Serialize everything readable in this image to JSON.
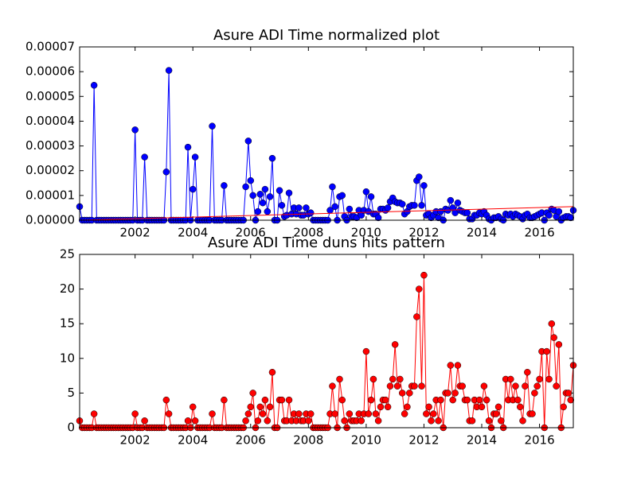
{
  "chart_data": [
    {
      "type": "line",
      "title": "Asure ADI Time normalized plot",
      "x": [
        2000.08,
        2000.17,
        2000.25,
        2000.33,
        2000.42,
        2000.5,
        2000.58,
        2000.67,
        2000.75,
        2000.83,
        2000.92,
        2001,
        2001.08,
        2001.17,
        2001.25,
        2001.33,
        2001.42,
        2001.5,
        2001.58,
        2001.67,
        2001.75,
        2001.83,
        2001.92,
        2002,
        2002.08,
        2002.17,
        2002.25,
        2002.33,
        2002.42,
        2002.5,
        2002.58,
        2002.67,
        2002.75,
        2002.83,
        2002.92,
        2003,
        2003.08,
        2003.17,
        2003.25,
        2003.33,
        2003.42,
        2003.5,
        2003.58,
        2003.67,
        2003.75,
        2003.83,
        2003.92,
        2004,
        2004.08,
        2004.17,
        2004.25,
        2004.33,
        2004.42,
        2004.5,
        2004.58,
        2004.67,
        2004.75,
        2004.83,
        2004.92,
        2005,
        2005.08,
        2005.17,
        2005.25,
        2005.33,
        2005.42,
        2005.5,
        2005.58,
        2005.67,
        2005.75,
        2005.83,
        2005.92,
        2006,
        2006.08,
        2006.17,
        2006.25,
        2006.33,
        2006.42,
        2006.5,
        2006.58,
        2006.67,
        2006.75,
        2006.83,
        2006.92,
        2007,
        2007.08,
        2007.17,
        2007.25,
        2007.33,
        2007.42,
        2007.5,
        2007.58,
        2007.67,
        2007.75,
        2007.83,
        2007.92,
        2008,
        2008.08,
        2008.17,
        2008.25,
        2008.33,
        2008.42,
        2008.5,
        2008.58,
        2008.67,
        2008.75,
        2008.83,
        2008.92,
        2009,
        2009.08,
        2009.17,
        2009.25,
        2009.33,
        2009.42,
        2009.5,
        2009.58,
        2009.67,
        2009.75,
        2009.83,
        2009.92,
        2010,
        2010.08,
        2010.17,
        2010.25,
        2010.33,
        2010.42,
        2010.5,
        2010.58,
        2010.67,
        2010.75,
        2010.83,
        2010.92,
        2011,
        2011.08,
        2011.17,
        2011.25,
        2011.33,
        2011.42,
        2011.5,
        2011.58,
        2011.67,
        2011.75,
        2011.83,
        2011.92,
        2012,
        2012.08,
        2012.17,
        2012.25,
        2012.33,
        2012.42,
        2012.5,
        2012.58,
        2012.67,
        2012.75,
        2012.83,
        2012.92,
        2013,
        2013.08,
        2013.17,
        2013.25,
        2013.33,
        2013.42,
        2013.5,
        2013.58,
        2013.67,
        2013.75,
        2013.83,
        2013.92,
        2014,
        2014.08,
        2014.17,
        2014.25,
        2014.33,
        2014.42,
        2014.5,
        2014.58,
        2014.67,
        2014.75,
        2014.83,
        2014.92,
        2015,
        2015.08,
        2015.17,
        2015.25,
        2015.33,
        2015.42,
        2015.5,
        2015.58,
        2015.67,
        2015.75,
        2015.83,
        2015.92,
        2016,
        2016.08,
        2016.17,
        2016.25,
        2016.33,
        2016.42,
        2016.5,
        2016.58,
        2016.67,
        2016.75,
        2016.83,
        2016.92,
        2017,
        2017.08,
        2017.17
      ],
      "series": [
        {
          "color": "#0000ff",
          "markers": true,
          "values": [
            5.5e-06,
            0,
            0,
            0,
            0,
            0,
            5.45e-05,
            0,
            0,
            0,
            0,
            0,
            0,
            0,
            0,
            0,
            0,
            0,
            0,
            0,
            0,
            0,
            0,
            3.65e-05,
            0,
            0,
            0,
            2.55e-05,
            0,
            0,
            0,
            0,
            0,
            0,
            0,
            0,
            1.95e-05,
            6.05e-05,
            0,
            0,
            0,
            0,
            0,
            0,
            0,
            2.95e-05,
            0,
            1.25e-05,
            2.55e-05,
            0,
            0,
            0,
            0,
            0,
            0,
            3.8e-05,
            0,
            0,
            0,
            0,
            1.4e-05,
            0,
            0,
            0,
            0,
            0,
            0,
            0,
            0,
            1.35e-05,
            3.2e-05,
            1.6e-05,
            1e-05,
            0,
            3.5e-06,
            1.05e-05,
            7e-06,
            1.25e-05,
            3.5e-06,
            9.5e-06,
            2.5e-05,
            0,
            0,
            1.2e-05,
            6e-06,
            1.5e-06,
            2e-06,
            1.1e-05,
            2.5e-06,
            5e-06,
            2.5e-06,
            5e-06,
            2e-06,
            2e-06,
            5e-06,
            2.5e-06,
            3e-06,
            0,
            0,
            0,
            0,
            0,
            0,
            0,
            4e-06,
            1.35e-05,
            5.5e-06,
            0,
            9.5e-06,
            1e-05,
            1.5e-06,
            0,
            4.5e-06,
            1.5e-06,
            1.5e-06,
            1e-06,
            4e-06,
            2e-06,
            4e-06,
            1.15e-05,
            3.5e-06,
            9.5e-06,
            2.5e-06,
            2.5e-06,
            1e-06,
            4.5e-06,
            4.5e-06,
            4e-06,
            5e-06,
            7.5e-06,
            9e-06,
            7.5e-06,
            7e-06,
            7e-06,
            6.5e-06,
            2.5e-06,
            3.5e-06,
            5.5e-06,
            6e-06,
            6e-06,
            1.6e-05,
            1.75e-05,
            6e-06,
            1.4e-05,
            2e-06,
            2.5e-06,
            1e-06,
            2e-06,
            3.5e-06,
            1e-06,
            3.5e-06,
            0,
            4.5e-06,
            4e-06,
            8e-06,
            5e-06,
            3e-06,
            7e-06,
            4e-06,
            3.5e-06,
            3e-06,
            3e-06,
            5e-07,
            5e-07,
            2e-06,
            2e-06,
            3e-06,
            2.5e-06,
            3.5e-06,
            2e-06,
            5e-07,
            0,
            1e-06,
            1e-06,
            1.5e-06,
            5e-07,
            0,
            2.5e-06,
            2e-06,
            2.5e-06,
            1.5e-06,
            2.5e-06,
            2e-06,
            1.5e-06,
            5e-07,
            2e-06,
            2.5e-06,
            1e-06,
            1e-06,
            1.5e-06,
            2e-06,
            2.5e-06,
            3e-06,
            0,
            3e-06,
            2e-06,
            4.5e-06,
            4e-06,
            1.5e-06,
            3.5e-06,
            0,
            1e-06,
            1.5e-06,
            1.5e-06,
            1e-06,
            4e-06
          ]
        },
        {
          "color": "#ff0000",
          "markers": false,
          "x": [
            2000.08,
            2017.17
          ],
          "values": [
            0,
            5.5e-06
          ]
        }
      ],
      "xlim": [
        2000.08,
        2017.17
      ],
      "xticks": [
        2002,
        2004,
        2006,
        2008,
        2010,
        2012,
        2014,
        2016
      ],
      "ylim": [
        0,
        7e-05
      ],
      "yticks": [
        {
          "value": 0,
          "label": "0.00000"
        },
        {
          "value": 1e-05,
          "label": "0.00001"
        },
        {
          "value": 2e-05,
          "label": "0.00002"
        },
        {
          "value": 3e-05,
          "label": "0.00003"
        },
        {
          "value": 4e-05,
          "label": "0.00004"
        },
        {
          "value": 5e-05,
          "label": "0.00005"
        },
        {
          "value": 6e-05,
          "label": "0.00006"
        },
        {
          "value": 7e-05,
          "label": "0.00007"
        }
      ]
    },
    {
      "type": "line",
      "title": "Asure ADI Time duns hits pattern",
      "x": [
        2000.08,
        2000.17,
        2000.25,
        2000.33,
        2000.42,
        2000.5,
        2000.58,
        2000.67,
        2000.75,
        2000.83,
        2000.92,
        2001,
        2001.08,
        2001.17,
        2001.25,
        2001.33,
        2001.42,
        2001.5,
        2001.58,
        2001.67,
        2001.75,
        2001.83,
        2001.92,
        2002,
        2002.08,
        2002.17,
        2002.25,
        2002.33,
        2002.42,
        2002.5,
        2002.58,
        2002.67,
        2002.75,
        2002.83,
        2002.92,
        2003,
        2003.08,
        2003.17,
        2003.25,
        2003.33,
        2003.42,
        2003.5,
        2003.58,
        2003.67,
        2003.75,
        2003.83,
        2003.92,
        2004,
        2004.08,
        2004.17,
        2004.25,
        2004.33,
        2004.42,
        2004.5,
        2004.58,
        2004.67,
        2004.75,
        2004.83,
        2004.92,
        2005,
        2005.08,
        2005.17,
        2005.25,
        2005.33,
        2005.42,
        2005.5,
        2005.58,
        2005.67,
        2005.75,
        2005.83,
        2005.92,
        2006,
        2006.08,
        2006.17,
        2006.25,
        2006.33,
        2006.42,
        2006.5,
        2006.58,
        2006.67,
        2006.75,
        2006.83,
        2006.92,
        2007,
        2007.08,
        2007.17,
        2007.25,
        2007.33,
        2007.42,
        2007.5,
        2007.58,
        2007.67,
        2007.75,
        2007.83,
        2007.92,
        2008,
        2008.08,
        2008.17,
        2008.25,
        2008.33,
        2008.42,
        2008.5,
        2008.58,
        2008.67,
        2008.75,
        2008.83,
        2008.92,
        2009,
        2009.08,
        2009.17,
        2009.25,
        2009.33,
        2009.42,
        2009.5,
        2009.58,
        2009.67,
        2009.75,
        2009.83,
        2009.92,
        2010,
        2010.08,
        2010.17,
        2010.25,
        2010.33,
        2010.42,
        2010.5,
        2010.58,
        2010.67,
        2010.75,
        2010.83,
        2010.92,
        2011,
        2011.08,
        2011.17,
        2011.25,
        2011.33,
        2011.42,
        2011.5,
        2011.58,
        2011.67,
        2011.75,
        2011.83,
        2011.92,
        2012,
        2012.08,
        2012.17,
        2012.25,
        2012.33,
        2012.42,
        2012.5,
        2012.58,
        2012.67,
        2012.75,
        2012.83,
        2012.92,
        2013,
        2013.08,
        2013.17,
        2013.25,
        2013.33,
        2013.42,
        2013.5,
        2013.58,
        2013.67,
        2013.75,
        2013.83,
        2013.92,
        2014,
        2014.08,
        2014.17,
        2014.25,
        2014.33,
        2014.42,
        2014.5,
        2014.58,
        2014.67,
        2014.75,
        2014.83,
        2014.92,
        2015,
        2015.08,
        2015.17,
        2015.25,
        2015.33,
        2015.42,
        2015.5,
        2015.58,
        2015.67,
        2015.75,
        2015.83,
        2015.92,
        2016,
        2016.08,
        2016.17,
        2016.25,
        2016.33,
        2016.42,
        2016.5,
        2016.58,
        2016.67,
        2016.75,
        2016.83,
        2016.92,
        2017,
        2017.08,
        2017.17
      ],
      "series": [
        {
          "color": "#ff0000",
          "markers": true,
          "values": [
            1,
            0,
            0,
            0,
            0,
            0,
            2,
            0,
            0,
            0,
            0,
            0,
            0,
            0,
            0,
            0,
            0,
            0,
            0,
            0,
            0,
            0,
            0,
            2,
            0,
            0,
            0,
            1,
            0,
            0,
            0,
            0,
            0,
            0,
            0,
            0,
            4,
            2,
            0,
            0,
            0,
            0,
            0,
            0,
            0,
            1,
            0,
            3,
            1,
            0,
            0,
            0,
            0,
            0,
            0,
            2,
            0,
            0,
            0,
            0,
            4,
            0,
            0,
            0,
            0,
            0,
            0,
            0,
            0,
            1,
            2,
            3,
            5,
            0,
            1,
            3,
            2,
            4,
            1,
            3,
            8,
            0,
            0,
            4,
            4,
            1,
            1,
            4,
            1,
            2,
            1,
            2,
            1,
            1,
            2,
            1,
            2,
            0,
            0,
            0,
            0,
            0,
            0,
            0,
            2,
            6,
            2,
            0,
            7,
            4,
            1,
            0,
            2,
            1,
            1,
            1,
            2,
            1,
            2,
            11,
            2,
            4,
            7,
            2,
            1,
            3,
            4,
            4,
            3,
            6,
            7,
            12,
            6,
            7,
            5,
            2,
            3,
            5,
            6,
            6,
            16,
            20,
            6,
            22,
            2,
            3,
            1,
            2,
            4,
            1,
            4,
            0,
            5,
            5,
            9,
            4,
            5,
            9,
            6,
            6,
            4,
            4,
            1,
            1,
            4,
            3,
            4,
            3,
            6,
            4,
            1,
            0,
            2,
            2,
            3,
            1,
            0,
            7,
            4,
            7,
            4,
            6,
            4,
            3,
            1,
            6,
            8,
            2,
            2,
            5,
            6,
            7,
            11,
            0,
            11,
            7,
            15,
            13,
            6,
            12,
            0,
            3,
            5,
            5,
            4,
            9
          ]
        }
      ],
      "xlim": [
        2000.08,
        2017.17
      ],
      "xticks": [
        2002,
        2004,
        2006,
        2008,
        2010,
        2012,
        2014,
        2016
      ],
      "ylim": [
        0,
        25
      ],
      "yticks": [
        0,
        5,
        10,
        15,
        20,
        25
      ]
    }
  ]
}
